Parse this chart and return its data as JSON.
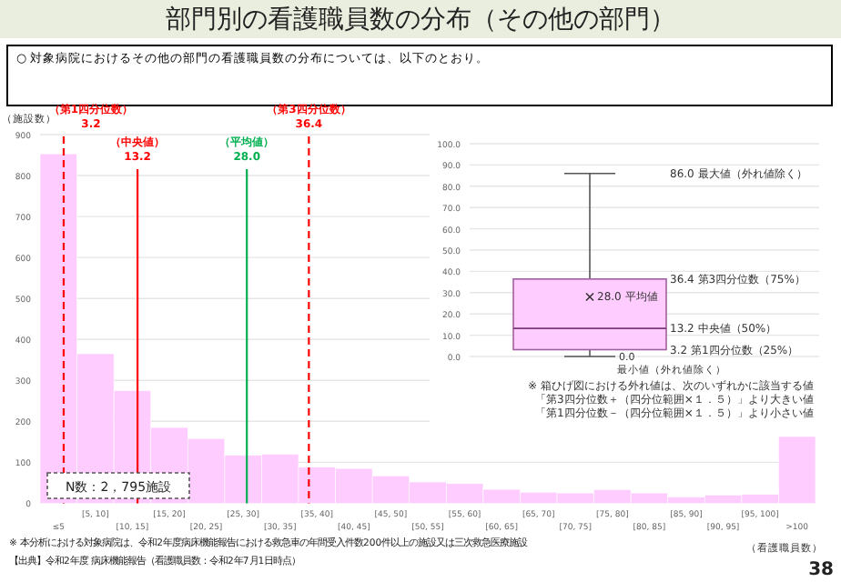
{
  "chart_data": [
    {
      "type": "histogram",
      "title": "部門別の看護職員数の分布（その他の部門）",
      "subtitle": "○ 対象病院におけるその他の部門の看護職員数の分布については、以下のとおり。",
      "ylabel": "（施設数）",
      "xlabel": "（看護職員数）",
      "color": "#ffccff",
      "bins": [
        0,
        5,
        10,
        15,
        20,
        25,
        30,
        35,
        40,
        45,
        50,
        55,
        60,
        65,
        70,
        75,
        80,
        85,
        90,
        95,
        100,
        105
      ],
      "values": [
        853,
        365,
        275,
        185,
        158,
        117,
        120,
        88,
        85,
        67,
        52,
        48,
        34,
        27,
        25,
        33,
        25,
        15,
        20,
        22,
        163
      ],
      "xlim": [
        0,
        105
      ],
      "categories": [
        "≤5",
        "[5, 10]",
        "[10, 15]",
        "[15, 20]",
        "[20, 25]",
        "[25, 30]",
        "[30, 35]",
        "[35, 40]",
        "[40, 45]",
        "[45, 50]",
        "[50, 55]",
        "[55, 60]",
        "[60, 65]",
        "[65, 70]",
        "[70, 75]",
        "[75, 80]",
        "[80, 85]",
        "[85, 90]",
        "[90, 95]",
        "[95, 100]",
        ">100"
      ],
      "ylim": [
        0,
        900
      ],
      "yticks": [
        0,
        100,
        200,
        300,
        400,
        500,
        600,
        700,
        800,
        900
      ],
      "grid": "y",
      "ref_lines": [
        {
          "axis": "x",
          "value": 3.2,
          "label": "（第1四分位数）\n3.2",
          "color": "#ff0000",
          "line_style": "dashed"
        },
        {
          "axis": "x",
          "value": 13.2,
          "label": "（中央値）\n13.2",
          "color": "#ff0000",
          "line_style": "solid"
        },
        {
          "axis": "x",
          "value": 28.0,
          "label": "（平均値）\n28.0",
          "color": "#00b050",
          "line_style": "solid"
        },
        {
          "axis": "x",
          "value": 36.4,
          "label": "（第3四分位数）\n36.4",
          "color": "#ff0000",
          "line_style": "dashed"
        }
      ],
      "annotations": [
        "N数：2，795施設",
        "※ 本分析における対象病院は、令和2年度病床機能報告における救急車の年間受入件数200件以上の施設又は三次救急医療施設",
        "【出典】令和2年度 病床機能報告（看護職員数：令和2年7月1日時点）",
        "38"
      ]
    },
    {
      "type": "box",
      "categories": [
        null
      ],
      "color": "#ffccff",
      "boxes": [
        {
          "low": 0.0,
          "q1": 3.2,
          "median": 13.2,
          "q3": 36.4,
          "high": 86.0,
          "mean": 28.0
        }
      ],
      "ylim": [
        0,
        100
      ],
      "yticks": [
        {
          "value": 0,
          "label": "0.0"
        },
        {
          "value": 10,
          "label": "10.0"
        },
        {
          "value": 20,
          "label": "20.0"
        },
        {
          "value": 30,
          "label": "30.0"
        },
        {
          "value": 40,
          "label": "40.0"
        },
        {
          "value": 50,
          "label": "50.0"
        },
        {
          "value": 60,
          "label": "60.0"
        },
        {
          "value": 70,
          "label": "70.0"
        },
        {
          "value": 80,
          "label": "80.0"
        },
        {
          "value": 90,
          "label": "90.0"
        },
        {
          "value": 100,
          "label": "100.0"
        }
      ],
      "grid": "y",
      "annotations": [
        "86.0 最大値（外れ値除く）",
        "36.4 第3四分位数（75%）",
        "28.0 平均値",
        "13.2 中央値（50%）",
        "3.2 第1四分位数（25%）",
        "0.0\n最小値（外れ値除く）",
        "※ 箱ひげ図における外れ値は、次のいずれかに該当する値",
        "「第3四分位数＋（四分位範囲×１．５）」より大きい値",
        "「第1四分位数－（四分位範囲×１．５）」より小さい値"
      ]
    }
  ]
}
